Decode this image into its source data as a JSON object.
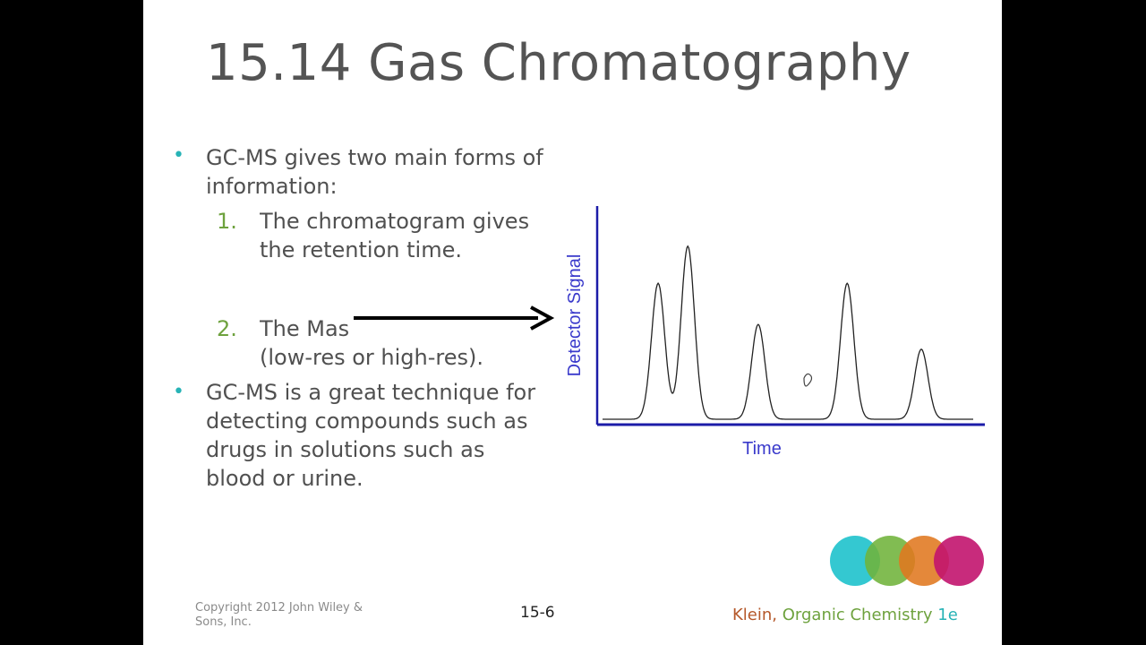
{
  "slide": {
    "title": "15.14 Gas Chromatography",
    "bullets": [
      {
        "text": "GC-MS gives two main forms of information:"
      },
      {
        "text": "GC-MS is a great technique for detecting compounds such as drugs in solutions such as blood or urine."
      }
    ],
    "subitems": [
      {
        "number": "1.",
        "line1": "The chromatogram gives",
        "line2": "the retention time."
      },
      {
        "number": "2.",
        "line1": "The Mas",
        "line2": "(low-res or high-res)."
      }
    ],
    "footer": {
      "copyright": "Copyright 2012 John Wiley & Sons, Inc.",
      "page": "15-6",
      "brand_author": "Klein,",
      "brand_title": "Organic Chemistry",
      "brand_edition": "1e"
    }
  },
  "chart_data": {
    "type": "line",
    "xlabel": "Time",
    "ylabel": "Detector Signal",
    "peaks": [
      {
        "x": 0.15,
        "height": 0.66
      },
      {
        "x": 0.23,
        "height": 0.84
      },
      {
        "x": 0.42,
        "height": 0.46
      },
      {
        "x": 0.66,
        "height": 0.66
      },
      {
        "x": 0.86,
        "height": 0.34
      }
    ]
  },
  "colors": {
    "title_text": "#545454",
    "body_text": "#505050",
    "bullet": "#27b3b6",
    "numbering": "#6ea23e",
    "axis_label": "#3a3acb",
    "brand_author": "#b5582a",
    "brand_title": "#6ea23e",
    "brand_edition": "#27b3b6",
    "logo_circles": [
      "#1ec2cc",
      "#6fb33a",
      "#e0781f",
      "#c2146e"
    ]
  }
}
